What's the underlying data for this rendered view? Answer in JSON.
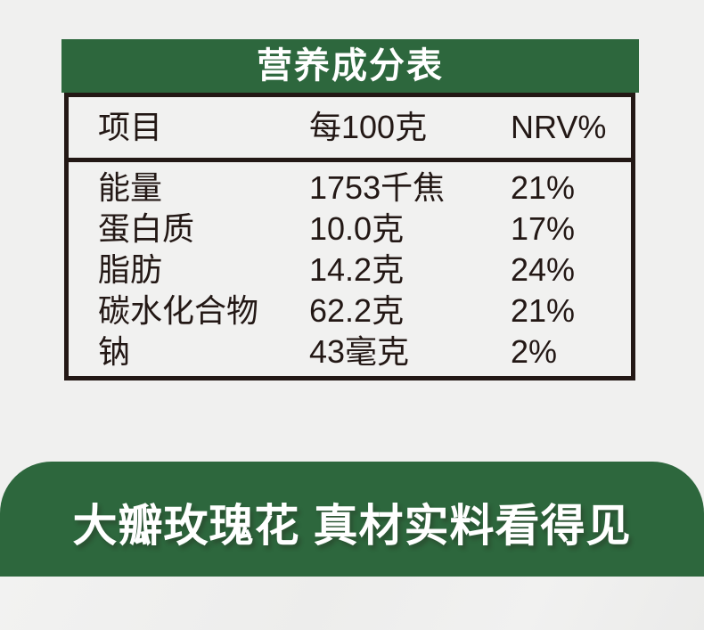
{
  "colors": {
    "background": "#f0f0ef",
    "accent_green": "#2d673d",
    "border_dark": "#231815",
    "text_dark": "#231815",
    "text_light": "#ffffff"
  },
  "nutrition_table": {
    "title": "营养成分表",
    "columns": [
      "项目",
      "每100克",
      "NRV%"
    ],
    "rows": [
      {
        "item": "能量",
        "per100g": "1753千焦",
        "nrv": "21%"
      },
      {
        "item": "蛋白质",
        "per100g": "10.0克",
        "nrv": "17%"
      },
      {
        "item": "脂肪",
        "per100g": "14.2克",
        "nrv": "24%"
      },
      {
        "item": "碳水化合物",
        "per100g": "62.2克",
        "nrv": "21%"
      },
      {
        "item": "钠",
        "per100g": "43毫克",
        "nrv": "2%"
      }
    ]
  },
  "banner": {
    "text": "大瓣玫瑰花 真材实料看得见"
  }
}
